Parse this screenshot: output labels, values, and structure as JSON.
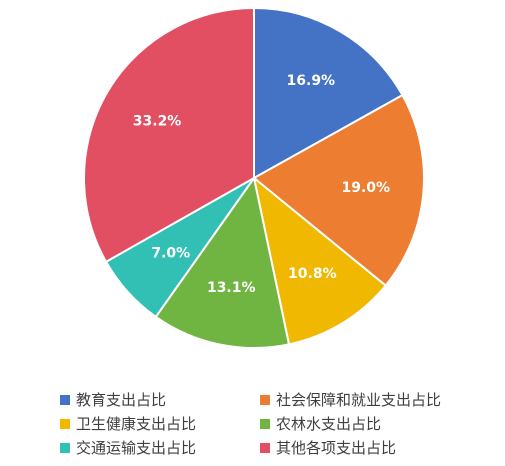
{
  "chart_data": {
    "type": "pie",
    "title": "",
    "start_angle_deg": 0,
    "direction": "clockwise",
    "legend_position": "bottom",
    "slices": [
      {
        "label": "教育支出占比",
        "value": 16.9,
        "display": "16.9%",
        "color": "#4472c4"
      },
      {
        "label": "社会保障和就业支出占比",
        "value": 19.0,
        "display": "19.0%",
        "color": "#ed7d31"
      },
      {
        "label": "卫生健康支出占比",
        "value": 10.8,
        "display": "10.8%",
        "color": "#f0b800"
      },
      {
        "label": "农林水支出占比",
        "value": 13.1,
        "display": "13.1%",
        "color": "#70b542"
      },
      {
        "label": "交通运输支出占比",
        "value": 7.0,
        "display": "7.0%",
        "color": "#33c0b4"
      },
      {
        "label": "其他各项支出占比",
        "value": 33.2,
        "display": "33.2%",
        "color": "#e24e62"
      }
    ],
    "legend_order": [
      0,
      1,
      2,
      3,
      4,
      5
    ]
  }
}
